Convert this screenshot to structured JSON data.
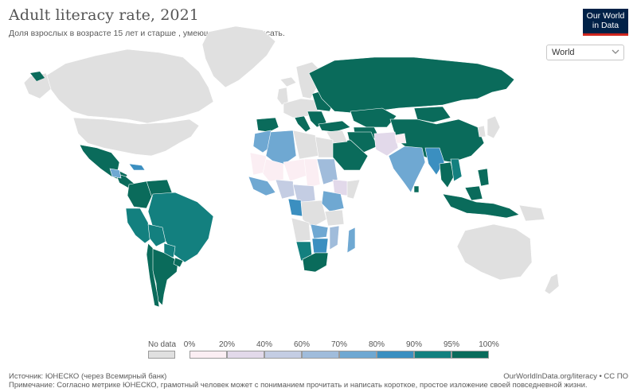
{
  "header": {
    "title": "Adult literacy rate, 2021",
    "subtitle": "Доля взрослых в возрасте 15 лет и старше , умеющих читать и писать."
  },
  "logo": {
    "line1": "Our World",
    "line2": "in Data"
  },
  "region_select": {
    "selected": "World"
  },
  "legend": {
    "no_data_label": "No data",
    "thresholds": [
      "0%",
      "20%",
      "40%",
      "60%",
      "70%",
      "80%",
      "90%",
      "95%",
      "100%"
    ],
    "colors": [
      "#fbeef3",
      "#e2d9ea",
      "#c4cde3",
      "#a0bcdb",
      "#6fa8d2",
      "#3b8fc0",
      "#13807f",
      "#0a6b5b"
    ],
    "no_data_color": "#e0e0e0"
  },
  "footer": {
    "source": "Источник: ЮНЕСКО (через Всемирный банк)",
    "url": "OurWorldInData.org/literacy • CC ПО",
    "note": "Примечание: Согласно метрике ЮНЕСКО, грамотный человек может с пониманием прочитать и написать короткое, простое изложение своей повседневной жизни."
  }
}
